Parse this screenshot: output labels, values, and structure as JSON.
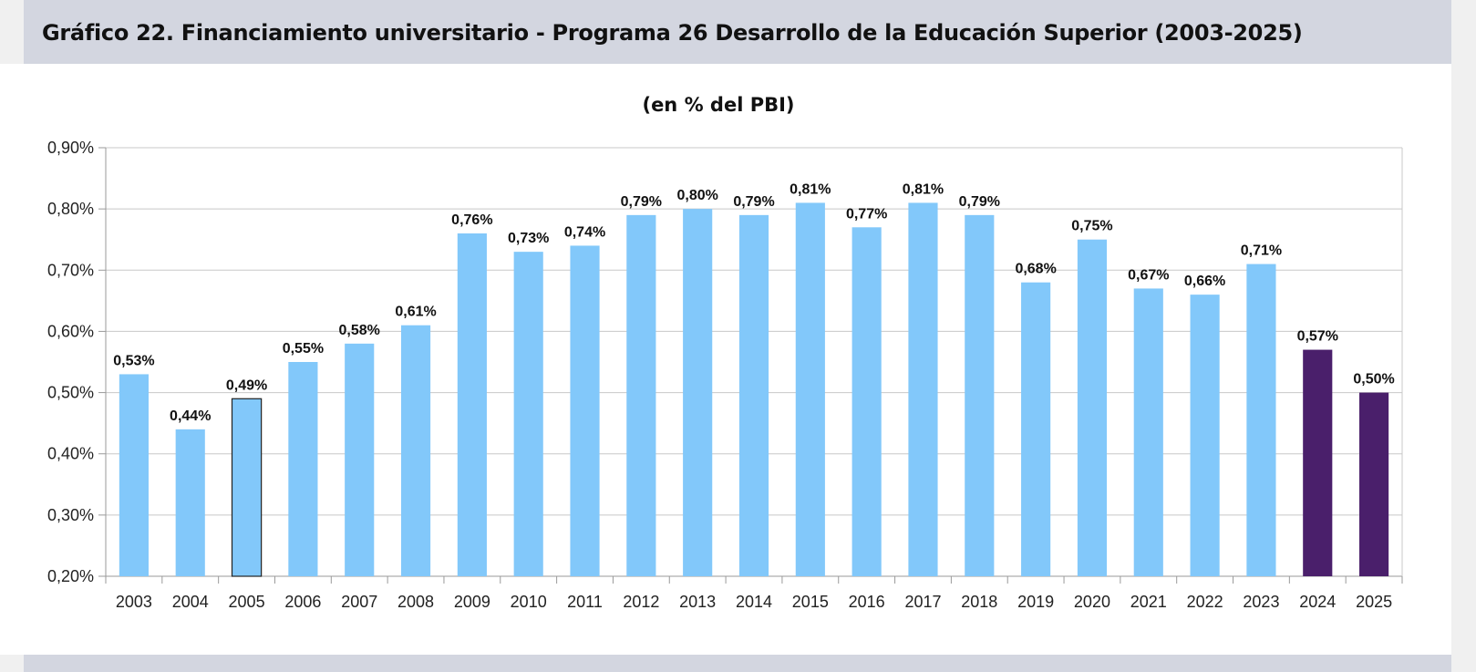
{
  "header": {
    "title": "Gráfico 22. Financiamiento universitario - Programa 26 Desarrollo de la Educación Superior (2003-2025)"
  },
  "chart_data": {
    "type": "bar",
    "title": "",
    "subtitle": "(en % del PBI)",
    "xlabel": "",
    "ylabel": "",
    "categories": [
      "2003",
      "2004",
      "2005",
      "2006",
      "2007",
      "2008",
      "2009",
      "2010",
      "2011",
      "2012",
      "2013",
      "2014",
      "2015",
      "2016",
      "2017",
      "2018",
      "2019",
      "2020",
      "2021",
      "2022",
      "2023",
      "2024",
      "2025"
    ],
    "values": [
      0.53,
      0.44,
      0.49,
      0.55,
      0.58,
      0.61,
      0.76,
      0.73,
      0.74,
      0.79,
      0.8,
      0.79,
      0.81,
      0.77,
      0.81,
      0.79,
      0.68,
      0.75,
      0.67,
      0.66,
      0.71,
      0.57,
      0.5
    ],
    "data_labels": [
      "0,53%",
      "0,44%",
      "0,49%",
      "0,55%",
      "0,58%",
      "0,61%",
      "0,76%",
      "0,73%",
      "0,74%",
      "0,79%",
      "0,80%",
      "0,79%",
      "0,81%",
      "0,77%",
      "0,81%",
      "0,79%",
      "0,68%",
      "0,75%",
      "0,67%",
      "0,66%",
      "0,71%",
      "0,57%",
      "0,50%"
    ],
    "bar_colors": [
      "#82c8fa",
      "#82c8fa",
      "#82c8fa",
      "#82c8fa",
      "#82c8fa",
      "#82c8fa",
      "#82c8fa",
      "#82c8fa",
      "#82c8fa",
      "#82c8fa",
      "#82c8fa",
      "#82c8fa",
      "#82c8fa",
      "#82c8fa",
      "#82c8fa",
      "#82c8fa",
      "#82c8fa",
      "#82c8fa",
      "#82c8fa",
      "#82c8fa",
      "#82c8fa",
      "#4a1f6b",
      "#4a1f6b"
    ],
    "highlighted_outline": [
      "2005"
    ],
    "ylim": [
      0.2,
      0.9
    ],
    "yticks": [
      0.2,
      0.3,
      0.4,
      0.5,
      0.6,
      0.7,
      0.8,
      0.9
    ],
    "ytick_labels": [
      "0,20%",
      "0,30%",
      "0,40%",
      "0,50%",
      "0,60%",
      "0,70%",
      "0,80%",
      "0,90%"
    ],
    "grid": true,
    "legend": "none"
  }
}
